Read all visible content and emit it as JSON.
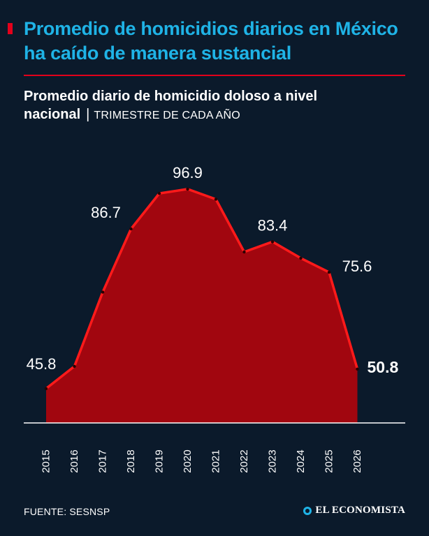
{
  "header": {
    "headline": "Promedio de homicidios diarios en México ha caído de manera sustancial",
    "subtitle_bold": "Promedio diario de homicidio doloso a nivel nacional",
    "subtitle_sep": "|",
    "subtitle_note": "TRIMESTRE DE CADA AÑO"
  },
  "chart_data": {
    "type": "area",
    "title": "Promedio diario de homicidio doloso a nivel nacional",
    "xlabel": "",
    "ylabel": "",
    "categories": [
      "2015",
      "2016",
      "2017",
      "2018",
      "2019",
      "2020",
      "2021",
      "2022",
      "2023",
      "2024",
      "2025",
      "2026"
    ],
    "values": [
      45.8,
      51.5,
      70.5,
      86.7,
      95.8,
      96.9,
      94.3,
      80.8,
      83.4,
      79.2,
      75.6,
      50.8
    ],
    "labels": [
      {
        "index": 0,
        "text": "45.8"
      },
      {
        "index": 3,
        "text": "86.7"
      },
      {
        "index": 5,
        "text": "96.9"
      },
      {
        "index": 8,
        "text": "83.4"
      },
      {
        "index": 10,
        "text": "75.6"
      },
      {
        "index": 11,
        "text": "50.8",
        "emphasis": true
      }
    ],
    "ylim": [
      37,
      101
    ],
    "grid": false,
    "colors": {
      "fill": "#a1060f",
      "line": "#ff1a1a",
      "marker": "#2a0000",
      "axis": "#ffffff"
    }
  },
  "footer": {
    "source": "FUENTE: SESNSP",
    "brand": "EL ECONOMISTA"
  }
}
